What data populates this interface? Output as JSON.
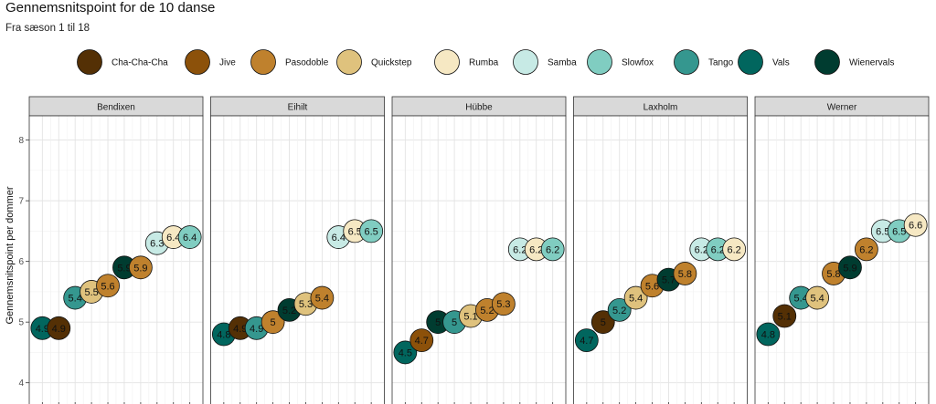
{
  "chart_data": {
    "type": "scatter",
    "title": "Gennemsnitspoint for de 10 danse",
    "subtitle": "Fra sæson 1 til 18",
    "ylabel": "Gennemsnitspoint per dommer",
    "ylim": [
      3.8,
      8.4
    ],
    "yticks": [
      "4",
      "5",
      "6",
      "7",
      "8"
    ],
    "grid": true,
    "legend_position": "top",
    "legend": [
      {
        "name": "Cha-Cha-Cha",
        "color": "#543005"
      },
      {
        "name": "Jive",
        "color": "#8c510a"
      },
      {
        "name": "Pasodoble",
        "color": "#bf812d"
      },
      {
        "name": "Quickstep",
        "color": "#dfc27d"
      },
      {
        "name": "Rumba",
        "color": "#f6e8c3"
      },
      {
        "name": "Samba",
        "color": "#c7eae5"
      },
      {
        "name": "Slowfox",
        "color": "#80cdc1"
      },
      {
        "name": "Tango",
        "color": "#35978f"
      },
      {
        "name": "Vals",
        "color": "#01665e"
      },
      {
        "name": "Wienervals",
        "color": "#003c30"
      }
    ],
    "panels": [
      {
        "name": "Bendixen",
        "points": [
          {
            "dance": "Vals",
            "value": 4.9,
            "label": "4.9"
          },
          {
            "dance": "Cha-Cha-Cha",
            "value": 4.9,
            "label": "4.9"
          },
          {
            "dance": "Tango",
            "value": 5.4,
            "label": "5.4"
          },
          {
            "dance": "Quickstep",
            "value": 5.5,
            "label": "5.5"
          },
          {
            "dance": "Pasodoble",
            "value": 5.6,
            "label": "5.6"
          },
          {
            "dance": "Wienervals",
            "value": 5.9,
            "label": "5.9"
          },
          {
            "dance": "Pasodoble",
            "value": 5.9,
            "label": "5.9"
          },
          {
            "dance": "Samba",
            "value": 6.3,
            "label": "6.3"
          },
          {
            "dance": "Rumba",
            "value": 6.4,
            "label": "6.4"
          },
          {
            "dance": "Slowfox",
            "value": 6.4,
            "label": "6.4"
          }
        ]
      },
      {
        "name": "Eihilt",
        "points": [
          {
            "dance": "Vals",
            "value": 4.8,
            "label": "4.8"
          },
          {
            "dance": "Cha-Cha-Cha",
            "value": 4.9,
            "label": "4.9"
          },
          {
            "dance": "Tango",
            "value": 4.9,
            "label": "4.9"
          },
          {
            "dance": "Pasodoble",
            "value": 5.0,
            "label": "5"
          },
          {
            "dance": "Wienervals",
            "value": 5.2,
            "label": "5.2"
          },
          {
            "dance": "Quickstep",
            "value": 5.3,
            "label": "5.3"
          },
          {
            "dance": "Pasodoble",
            "value": 5.4,
            "label": "5.4"
          },
          {
            "dance": "Samba",
            "value": 6.4,
            "label": "6.4"
          },
          {
            "dance": "Rumba",
            "value": 6.5,
            "label": "6.5"
          },
          {
            "dance": "Slowfox",
            "value": 6.5,
            "label": "6.5"
          }
        ]
      },
      {
        "name": "Hübbe",
        "points": [
          {
            "dance": "Vals",
            "value": 4.5,
            "label": "4.5"
          },
          {
            "dance": "Jive",
            "value": 4.7,
            "label": "4.7"
          },
          {
            "dance": "Wienervals",
            "value": 5.0,
            "label": "5"
          },
          {
            "dance": "Tango",
            "value": 5.0,
            "label": "5"
          },
          {
            "dance": "Quickstep",
            "value": 5.1,
            "label": "5.1"
          },
          {
            "dance": "Pasodoble",
            "value": 5.2,
            "label": "5.2"
          },
          {
            "dance": "Pasodoble",
            "value": 5.3,
            "label": "5.3"
          },
          {
            "dance": "Samba",
            "value": 6.2,
            "label": "6.2"
          },
          {
            "dance": "Rumba",
            "value": 6.2,
            "label": "6.2"
          },
          {
            "dance": "Slowfox",
            "value": 6.2,
            "label": "6.2"
          }
        ]
      },
      {
        "name": "Laxholm",
        "points": [
          {
            "dance": "Vals",
            "value": 4.7,
            "label": "4.7"
          },
          {
            "dance": "Cha-Cha-Cha",
            "value": 5.0,
            "label": "5"
          },
          {
            "dance": "Tango",
            "value": 5.2,
            "label": "5.2"
          },
          {
            "dance": "Quickstep",
            "value": 5.4,
            "label": "5.4"
          },
          {
            "dance": "Pasodoble",
            "value": 5.6,
            "label": "5.6"
          },
          {
            "dance": "Wienervals",
            "value": 5.7,
            "label": "5.7"
          },
          {
            "dance": "Pasodoble",
            "value": 5.8,
            "label": "5.8"
          },
          {
            "dance": "Samba",
            "value": 6.2,
            "label": "6.2"
          },
          {
            "dance": "Slowfox",
            "value": 6.2,
            "label": "6.2"
          },
          {
            "dance": "Rumba",
            "value": 6.2,
            "label": "6.2"
          }
        ]
      },
      {
        "name": "Werner",
        "points": [
          {
            "dance": "Vals",
            "value": 4.8,
            "label": "4.8"
          },
          {
            "dance": "Cha-Cha-Cha",
            "value": 5.1,
            "label": "5.1"
          },
          {
            "dance": "Tango",
            "value": 5.4,
            "label": "5.4"
          },
          {
            "dance": "Quickstep",
            "value": 5.4,
            "label": "5.4"
          },
          {
            "dance": "Pasodoble",
            "value": 5.8,
            "label": "5.8"
          },
          {
            "dance": "Wienervals",
            "value": 5.9,
            "label": "5.9"
          },
          {
            "dance": "Pasodoble",
            "value": 6.2,
            "label": "6.2"
          },
          {
            "dance": "Samba",
            "value": 6.5,
            "label": "6.5"
          },
          {
            "dance": "Slowfox",
            "value": 6.5,
            "label": "6.5"
          },
          {
            "dance": "Rumba",
            "value": 6.6,
            "label": "6.6"
          }
        ]
      }
    ]
  }
}
